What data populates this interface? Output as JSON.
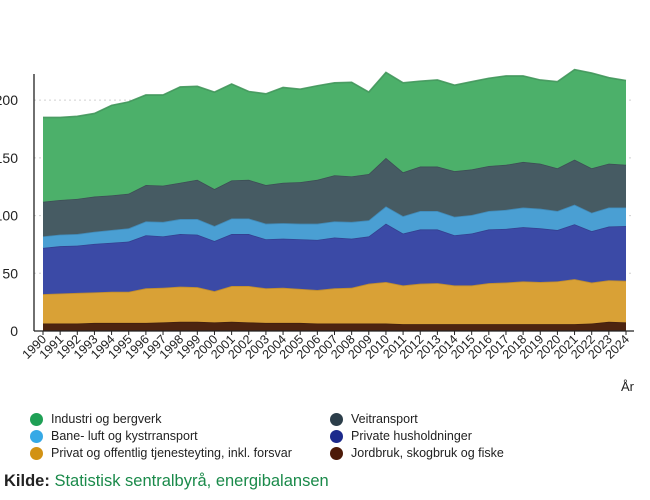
{
  "chart_data": {
    "type": "area",
    "stacked": true,
    "x": [
      "1990",
      "1991",
      "1992",
      "1993",
      "1994",
      "1995",
      "1996",
      "1997",
      "1998",
      "1999",
      "2000",
      "2001",
      "2002",
      "2003",
      "2004",
      "2005",
      "2006",
      "2007",
      "2008",
      "2009",
      "2010",
      "2011",
      "2012",
      "2013",
      "2014",
      "2015",
      "2016",
      "2017",
      "2018",
      "2019",
      "2020",
      "2021",
      "2022",
      "2023",
      "2024"
    ],
    "y_ticks": [
      "0",
      "50",
      "100",
      "150",
      "200"
    ],
    "y_tick_values": [
      0,
      50,
      100,
      150,
      200
    ],
    "ylim": [
      0,
      240
    ],
    "xlabel": "År",
    "ylabel": "",
    "grid": true,
    "legend_position": "bottom",
    "series": [
      {
        "name": "Jordbruk, skogbruk og fiske",
        "color": "#4d2410",
        "values": [
          6.5,
          6.5,
          6.5,
          7,
          7,
          7,
          7,
          7.5,
          8,
          8,
          7.5,
          8,
          7.5,
          7,
          7,
          7,
          6.5,
          6.5,
          6.5,
          6.5,
          6.5,
          6,
          6,
          6,
          6,
          6,
          6,
          6,
          6,
          6,
          6,
          6,
          6.5,
          8,
          7.5
        ]
      },
      {
        "name": "Privat og offentlig tjenesteyting, inkl. forsvar",
        "color": "#d9a136",
        "values": [
          25.5,
          26,
          26.5,
          26.5,
          27,
          27,
          30,
          30,
          30.5,
          30,
          27,
          31,
          31.5,
          30,
          30.5,
          29.5,
          29,
          30.5,
          31,
          34.5,
          36,
          33.5,
          35,
          35.5,
          33.5,
          33.5,
          35.5,
          36,
          37,
          36.5,
          37,
          39,
          35.5,
          36,
          36
        ]
      },
      {
        "name": "Private husholdninger",
        "color": "#3b4aa6",
        "values": [
          40,
          41,
          41,
          42,
          42.5,
          43.5,
          46,
          44.5,
          45.5,
          45.5,
          43.5,
          45,
          45,
          42.5,
          42.5,
          43,
          43.5,
          44,
          42.5,
          41,
          50.5,
          45,
          47,
          46.5,
          43.5,
          45,
          46.5,
          46.5,
          47,
          46.5,
          44.5,
          47.5,
          44.5,
          46.5,
          47.5
        ]
      },
      {
        "name": "Bane- luft og kystrransport",
        "color": "#4a9fd3",
        "values": [
          10,
          10,
          10,
          10.5,
          11,
          11.5,
          12,
          12.5,
          13,
          13.5,
          13,
          13.5,
          13.5,
          13.5,
          13.5,
          13.5,
          14,
          14,
          14.5,
          14,
          15,
          15,
          16,
          16,
          16,
          16,
          16,
          16.5,
          17,
          17,
          16.5,
          17,
          16,
          16.5,
          16
        ]
      },
      {
        "name": "Veitransport",
        "color": "#465b63",
        "values": [
          30,
          30,
          30.5,
          30.5,
          30,
          30,
          31.5,
          31.5,
          31.5,
          34,
          32,
          33,
          33.5,
          33.5,
          35,
          36,
          38,
          40,
          39.5,
          40,
          42,
          38,
          38.5,
          38.5,
          39.5,
          39.5,
          39,
          39,
          39.5,
          39,
          37,
          39,
          38.5,
          38,
          37
        ]
      },
      {
        "name": "Industri og bergverk",
        "color": "#4cb06a",
        "values": [
          73,
          71.5,
          71.5,
          72,
          78,
          79.5,
          78,
          78.5,
          83,
          81,
          84,
          83.5,
          76.5,
          79,
          82.5,
          80.5,
          81.5,
          80,
          81.5,
          71,
          74,
          77.5,
          74,
          75,
          74.5,
          76,
          76,
          77,
          74.5,
          72.5,
          75,
          78,
          82.5,
          74.5,
          73
        ]
      }
    ]
  },
  "legend": [
    {
      "label": "Industri og bergverk",
      "color": "#1fa055"
    },
    {
      "label": "Veitransport",
      "color": "#2c3e4a"
    },
    {
      "label": "Bane- luft og kystrransport",
      "color": "#36a9e6"
    },
    {
      "label": "Private husholdninger",
      "color": "#1c2a8c"
    },
    {
      "label": "Privat og offentlig tjenesteyting, inkl. forsvar",
      "color": "#d29214"
    },
    {
      "label": "Jordbruk, skogbruk og fiske",
      "color": "#4d1a08"
    }
  ],
  "source": {
    "label": "Kilde:",
    "text": "Statistisk sentralbyrå, energibalansen"
  }
}
